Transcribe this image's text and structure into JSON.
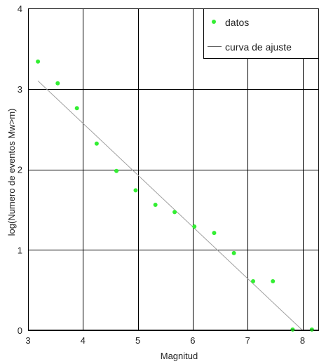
{
  "chart_data": {
    "type": "scatter",
    "title": "",
    "xlabel": "Magnitud",
    "ylabel": "log(Numero de eventos Mw>m)",
    "xlim": [
      3,
      8.3
    ],
    "ylim": [
      0,
      4
    ],
    "xticks": [
      3,
      4,
      5,
      6,
      7,
      8
    ],
    "yticks": [
      0,
      1,
      2,
      3,
      4
    ],
    "grid": true,
    "legend_position": "top-right",
    "series": [
      {
        "name": "datos",
        "type": "scatter",
        "color": "#33ee33",
        "points": [
          {
            "x": 3.18,
            "y": 3.34
          },
          {
            "x": 3.54,
            "y": 3.07
          },
          {
            "x": 3.89,
            "y": 2.76
          },
          {
            "x": 4.25,
            "y": 2.32
          },
          {
            "x": 4.61,
            "y": 1.98
          },
          {
            "x": 4.96,
            "y": 1.74
          },
          {
            "x": 5.32,
            "y": 1.56
          },
          {
            "x": 5.67,
            "y": 1.47
          },
          {
            "x": 6.03,
            "y": 1.29
          },
          {
            "x": 6.39,
            "y": 1.21
          },
          {
            "x": 6.75,
            "y": 0.96
          },
          {
            "x": 7.1,
            "y": 0.61
          },
          {
            "x": 7.46,
            "y": 0.61
          },
          {
            "x": 7.82,
            "y": 0.01
          },
          {
            "x": 8.17,
            "y": 0.01
          }
        ]
      },
      {
        "name": "curva de ajuste",
        "type": "line",
        "color": "#a0a0a0",
        "points": [
          {
            "x": 3.18,
            "y": 3.1
          },
          {
            "x": 8.0,
            "y": 0.0
          }
        ]
      }
    ]
  }
}
